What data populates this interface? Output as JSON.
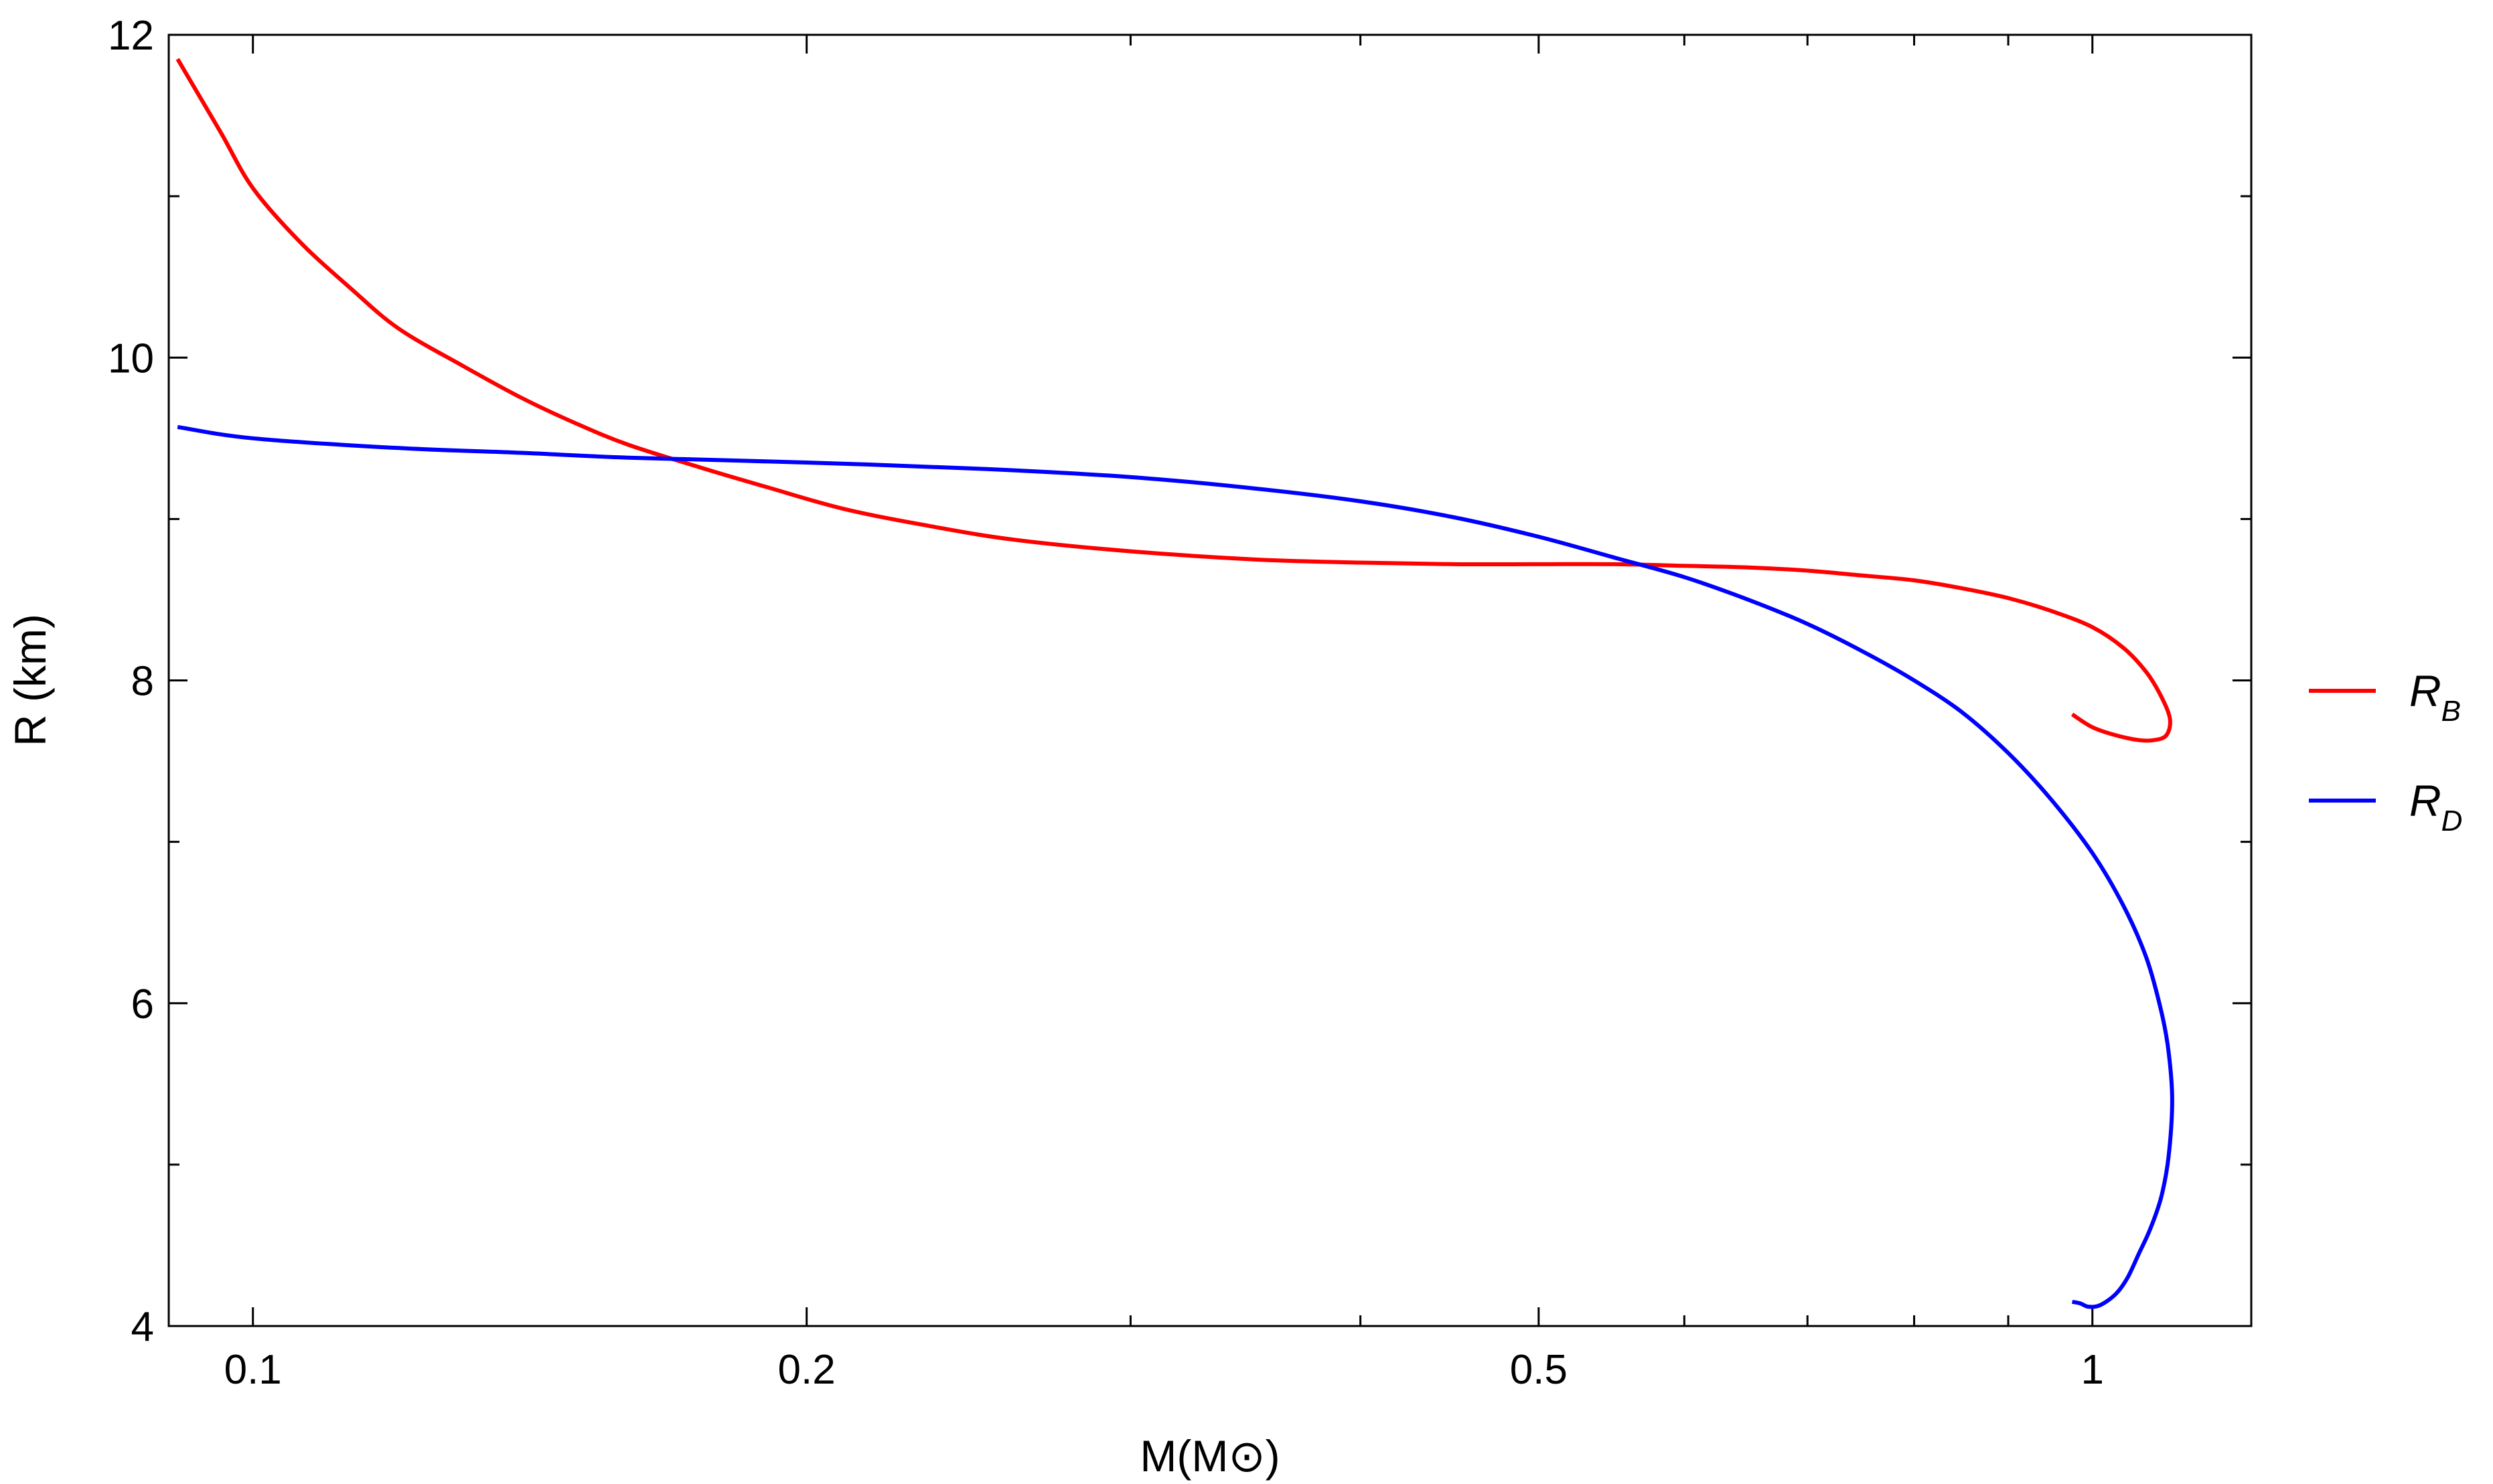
{
  "chart_data": {
    "type": "line",
    "xlabel": "M(M⊙)",
    "ylabel": "R (km)",
    "xscale": "log",
    "xlim": [
      0.09,
      1.22
    ],
    "ylim": [
      4,
      12
    ],
    "x_ticks": [
      {
        "value": 0.1,
        "label": "0.1"
      },
      {
        "value": 0.2,
        "label": "0.2"
      },
      {
        "value": 0.5,
        "label": "0.5"
      },
      {
        "value": 1,
        "label": "1"
      }
    ],
    "x_minor_ticks": [
      0.3,
      0.4,
      0.6,
      0.7,
      0.8,
      0.9
    ],
    "y_ticks": [
      {
        "value": 4,
        "label": "4"
      },
      {
        "value": 6,
        "label": "6"
      },
      {
        "value": 8,
        "label": "8"
      },
      {
        "value": 10,
        "label": "10"
      },
      {
        "value": 12,
        "label": "12"
      }
    ],
    "y_minor_ticks": [
      5,
      7,
      9,
      11
    ],
    "grid": false,
    "legend_position": "right",
    "series": [
      {
        "name": "R_B",
        "name_main": "R",
        "name_sub": "B",
        "color": "#ff0000",
        "points": [
          [
            0.091,
            11.85
          ],
          [
            0.096,
            11.4
          ],
          [
            0.1,
            11.05
          ],
          [
            0.106,
            10.72
          ],
          [
            0.113,
            10.43
          ],
          [
            0.12,
            10.18
          ],
          [
            0.13,
            9.95
          ],
          [
            0.14,
            9.75
          ],
          [
            0.15,
            9.59
          ],
          [
            0.16,
            9.46
          ],
          [
            0.175,
            9.32
          ],
          [
            0.19,
            9.2
          ],
          [
            0.21,
            9.06
          ],
          [
            0.235,
            8.95
          ],
          [
            0.26,
            8.87
          ],
          [
            0.3,
            8.8
          ],
          [
            0.35,
            8.75
          ],
          [
            0.4,
            8.73
          ],
          [
            0.45,
            8.72
          ],
          [
            0.5,
            8.72
          ],
          [
            0.55,
            8.72
          ],
          [
            0.6,
            8.71
          ],
          [
            0.65,
            8.7
          ],
          [
            0.7,
            8.68
          ],
          [
            0.75,
            8.65
          ],
          [
            0.8,
            8.62
          ],
          [
            0.85,
            8.57
          ],
          [
            0.9,
            8.51
          ],
          [
            0.95,
            8.43
          ],
          [
            1.0,
            8.33
          ],
          [
            1.04,
            8.2
          ],
          [
            1.07,
            8.05
          ],
          [
            1.09,
            7.9
          ],
          [
            1.102,
            7.76
          ],
          [
            1.097,
            7.66
          ],
          [
            1.08,
            7.63
          ],
          [
            1.06,
            7.63
          ],
          [
            1.03,
            7.66
          ],
          [
            1.0,
            7.71
          ],
          [
            0.975,
            7.79
          ]
        ]
      },
      {
        "name": "R_D",
        "name_main": "R",
        "name_sub": "D",
        "color": "#0000ff",
        "points": [
          [
            0.091,
            9.57
          ],
          [
            0.1,
            9.5
          ],
          [
            0.12,
            9.44
          ],
          [
            0.14,
            9.41
          ],
          [
            0.16,
            9.38
          ],
          [
            0.2,
            9.35
          ],
          [
            0.25,
            9.31
          ],
          [
            0.3,
            9.26
          ],
          [
            0.35,
            9.19
          ],
          [
            0.4,
            9.11
          ],
          [
            0.45,
            9.01
          ],
          [
            0.5,
            8.89
          ],
          [
            0.55,
            8.76
          ],
          [
            0.6,
            8.64
          ],
          [
            0.65,
            8.5
          ],
          [
            0.7,
            8.35
          ],
          [
            0.75,
            8.18
          ],
          [
            0.8,
            8.0
          ],
          [
            0.85,
            7.8
          ],
          [
            0.9,
            7.55
          ],
          [
            0.95,
            7.26
          ],
          [
            1.0,
            6.93
          ],
          [
            1.04,
            6.6
          ],
          [
            1.07,
            6.28
          ],
          [
            1.09,
            5.95
          ],
          [
            1.1,
            5.7
          ],
          [
            1.105,
            5.4
          ],
          [
            1.1,
            5.05
          ],
          [
            1.09,
            4.8
          ],
          [
            1.075,
            4.6
          ],
          [
            1.06,
            4.45
          ],
          [
            1.045,
            4.3
          ],
          [
            1.03,
            4.2
          ],
          [
            1.01,
            4.13
          ],
          [
            0.995,
            4.12
          ],
          [
            0.985,
            4.14
          ],
          [
            0.975,
            4.15
          ]
        ]
      }
    ]
  }
}
